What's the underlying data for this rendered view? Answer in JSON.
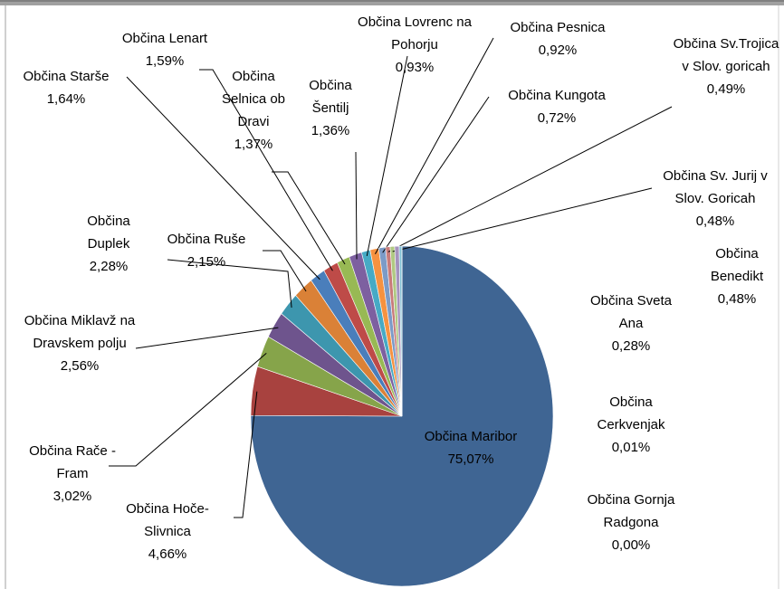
{
  "chart_data": {
    "type": "pie",
    "categories": [
      "Občina Maribor",
      "Občina Hoče-Slivnica",
      "Občina Rače - Fram",
      "Občina Miklavž na Dravskem polju",
      "Občina Duplek",
      "Občina Ruše",
      "Občina Starše",
      "Občina Lenart",
      "Občina Selnica ob Dravi",
      "Občina Šentilj",
      "Občina Lovrenc na Pohorju",
      "Občina Pesnica",
      "Občina Kungota",
      "Občina Sv.Trojica v Slov. goricah",
      "Občina Sv. Jurij v Slov. Goricah",
      "Občina Benedikt",
      "Občina Sveta Ana",
      "Občina Cerkvenjak",
      "Občina Gornja Radgona"
    ],
    "values": [
      75.07,
      4.66,
      3.02,
      2.56,
      2.28,
      2.15,
      1.64,
      1.59,
      1.37,
      1.36,
      0.93,
      0.92,
      0.72,
      0.49,
      0.48,
      0.48,
      0.28,
      0.01,
      0.0
    ],
    "value_labels": [
      "75,07%",
      "4,66%",
      "3,02%",
      "2,56%",
      "2,28%",
      "2,15%",
      "1,64%",
      "1,59%",
      "1,37%",
      "1,36%",
      "0,93%",
      "0,92%",
      "0,72%",
      "0,49%",
      "0,48%",
      "0,48%",
      "0,28%",
      "0,01%",
      "0,00%"
    ],
    "colors": [
      "#3f6593",
      "#a8423f",
      "#86a44a",
      "#6e548d",
      "#3d96ae",
      "#da8137",
      "#4a7ebb",
      "#be4b48",
      "#98b954",
      "#7d60a0",
      "#46aac5",
      "#f69240",
      "#7c9bc7",
      "#c97b7a",
      "#b0c982",
      "#a593bd",
      "#7fc0d5",
      "#f8b07c",
      "#a9bede"
    ]
  }
}
